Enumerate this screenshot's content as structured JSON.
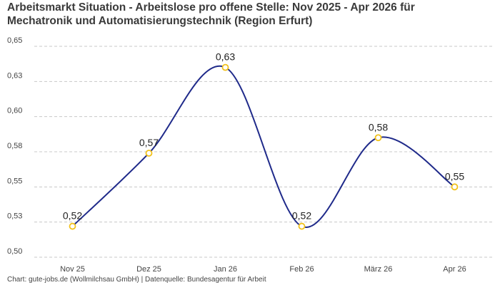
{
  "title_lines": [
    "Arbeitsmarkt Situation - Arbeitslose pro offene Stelle: Nov 2025 - Apr 2026 für",
    "Mechatronik und Automatisierungstechnik (Region Erfurt)"
  ],
  "footer": "Chart: gute-jobs.de (Wollmilchsau GmbH) | Datenquelle: Bundesagentur für Arbeit",
  "colors": {
    "line": "#1f2a8a",
    "marker": "#f2c21b",
    "grid": "#c8c8c8"
  },
  "chart_data": {
    "type": "line",
    "title": "Arbeitsmarkt Situation - Arbeitslose pro offene Stelle: Nov 2025 - Apr 2026 für Mechatronik und Automatisierungstechnik (Region Erfurt)",
    "categories": [
      "Nov 25",
      "Dez 25",
      "Jan 26",
      "Feb 26",
      "März 26",
      "Apr 26"
    ],
    "values": [
      0.522,
      0.574,
      0.635,
      0.522,
      0.585,
      0.55
    ],
    "data_labels": [
      "0,52",
      "0,57",
      "0,63",
      "0,52",
      "0,58",
      "0,55"
    ],
    "ylim": [
      0.5,
      0.65
    ],
    "yticks": [
      0.5,
      0.525,
      0.55,
      0.575,
      0.6,
      0.625,
      0.65
    ],
    "ytick_labels": [
      "0,50",
      "0,53",
      "0,55",
      "0,58",
      "0,60",
      "0,63",
      "0,65"
    ],
    "xlabel": "",
    "ylabel": "",
    "grid": true,
    "smooth": true,
    "legend": "none"
  }
}
